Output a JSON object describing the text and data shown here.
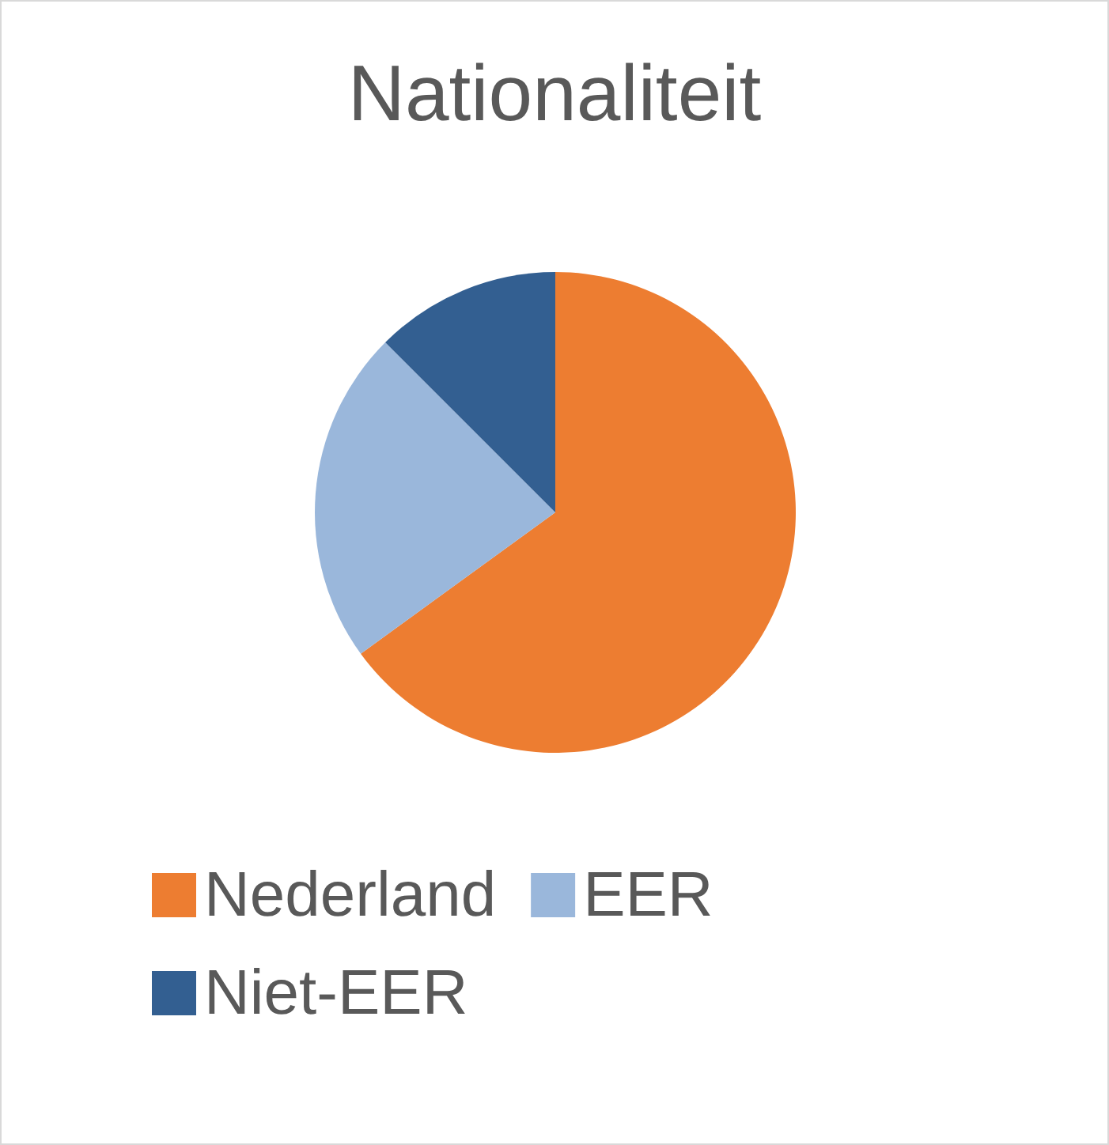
{
  "chart_data": {
    "type": "pie",
    "title": "Nationaliteit",
    "categories": [
      "Nederland",
      "EER",
      "Niet-EER"
    ],
    "values": [
      65,
      22.5,
      12.5
    ],
    "colors": [
      "#ed7d31",
      "#9ab7db",
      "#335f91"
    ],
    "legend": "bottom"
  }
}
